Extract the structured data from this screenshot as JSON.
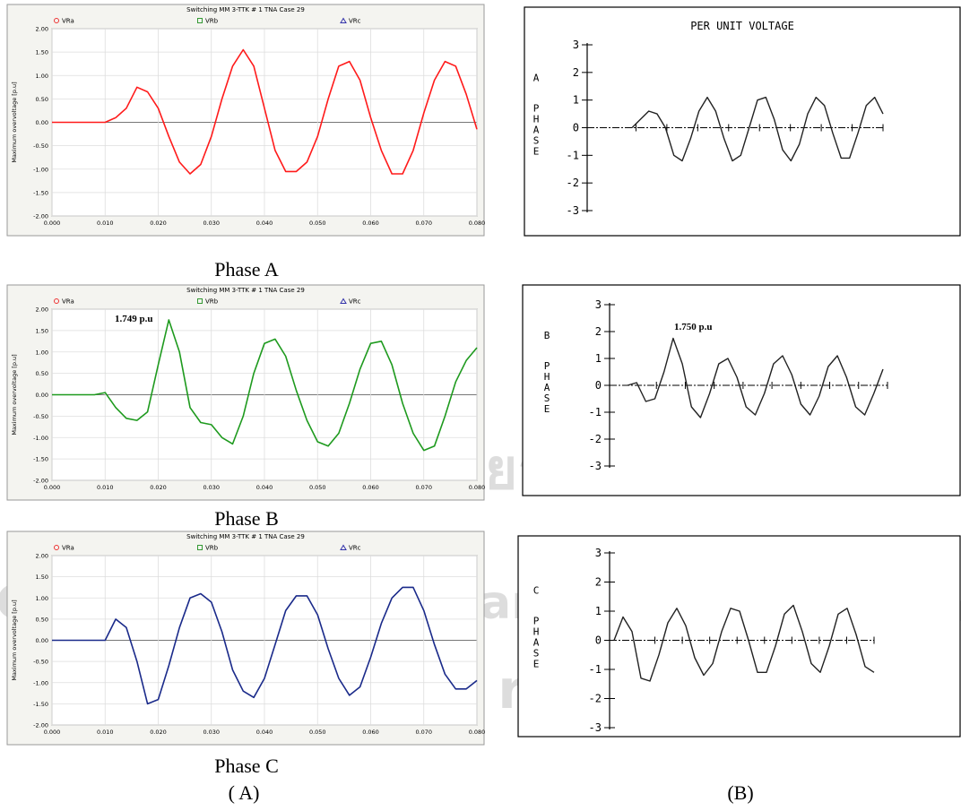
{
  "chart_data": [
    {
      "type": "line",
      "title": "Switching MM 3-TTK # 1 TNA Case 29",
      "legend": [
        "VRa",
        "VRb",
        "VRc"
      ],
      "ylabel": "Maximum overvoltage [p.u]",
      "x": [
        0,
        0.002,
        0.004,
        0.006,
        0.008,
        0.01,
        0.012,
        0.014,
        0.016,
        0.018,
        0.02,
        0.022,
        0.024,
        0.026,
        0.028,
        0.03,
        0.032,
        0.034,
        0.036,
        0.038,
        0.04,
        0.042,
        0.044,
        0.046,
        0.048,
        0.05,
        0.052,
        0.054,
        0.056,
        0.058,
        0.06,
        0.062,
        0.064,
        0.066,
        0.068,
        0.07,
        0.072,
        0.074,
        0.076,
        0.078,
        0.08
      ],
      "series": [
        {
          "color": "#ff1a1a",
          "values": [
            0,
            0,
            0,
            0,
            0,
            0,
            0.1,
            0.3,
            0.75,
            0.65,
            0.3,
            -0.3,
            -0.85,
            -1.1,
            -0.9,
            -0.3,
            0.5,
            1.2,
            1.55,
            1.2,
            0.3,
            -0.6,
            -1.05,
            -1.05,
            -0.85,
            -0.3,
            0.5,
            1.2,
            1.3,
            0.9,
            0.1,
            -0.6,
            -1.1,
            -1.1,
            -0.6,
            0.2,
            0.9,
            1.3,
            1.2,
            0.6,
            -0.15
          ]
        }
      ],
      "xlim": [
        0,
        0.08
      ],
      "ylim": [
        -2,
        2
      ],
      "xticks": [
        {
          "value": 0,
          "label": "0.000"
        },
        {
          "value": 0.01,
          "label": "0.010"
        },
        {
          "value": 0.02,
          "label": "0.020"
        },
        {
          "value": 0.03,
          "label": "0.030"
        },
        {
          "value": 0.04,
          "label": "0.040"
        },
        {
          "value": 0.05,
          "label": "0.050"
        },
        {
          "value": 0.06,
          "label": "0.060"
        },
        {
          "value": 0.07,
          "label": "0.070"
        },
        {
          "value": 0.08,
          "label": "0.080"
        }
      ],
      "yticks": [
        {
          "value": 2,
          "label": "2.00"
        },
        {
          "value": 1.5,
          "label": "1.50"
        },
        {
          "value": 1,
          "label": "1.00"
        },
        {
          "value": 0.5,
          "label": "0.50"
        },
        {
          "value": 0,
          "label": "0.00"
        },
        {
          "value": -0.5,
          "label": "-0.50"
        },
        {
          "value": -1,
          "label": "-1.00"
        },
        {
          "value": -1.5,
          "label": "-1.50"
        },
        {
          "value": -2,
          "label": "-2.00"
        }
      ],
      "grid": true
    },
    {
      "type": "line",
      "title": "Switching MM 3-TTK # 1 TNA Case 29",
      "legend": [
        "VRa",
        "VRb",
        "VRc"
      ],
      "ylabel": "Maximum overvoltage [p.u]",
      "annotation": "1.749 p.u",
      "x": [
        0,
        0.002,
        0.004,
        0.006,
        0.008,
        0.01,
        0.012,
        0.014,
        0.016,
        0.018,
        0.02,
        0.022,
        0.024,
        0.026,
        0.028,
        0.03,
        0.032,
        0.034,
        0.036,
        0.038,
        0.04,
        0.042,
        0.044,
        0.046,
        0.048,
        0.05,
        0.052,
        0.054,
        0.056,
        0.058,
        0.06,
        0.062,
        0.064,
        0.066,
        0.068,
        0.07,
        0.072,
        0.074,
        0.076,
        0.078,
        0.08
      ],
      "series": [
        {
          "color": "#1e9a1e",
          "values": [
            0,
            0,
            0,
            0,
            0,
            0.05,
            -0.3,
            -0.55,
            -0.6,
            -0.4,
            0.7,
            1.749,
            1.0,
            -0.3,
            -0.65,
            -0.7,
            -1.0,
            -1.15,
            -0.5,
            0.5,
            1.2,
            1.3,
            0.9,
            0.1,
            -0.6,
            -1.1,
            -1.2,
            -0.9,
            -0.2,
            0.6,
            1.2,
            1.25,
            0.7,
            -0.2,
            -0.9,
            -1.3,
            -1.2,
            -0.5,
            0.3,
            0.8,
            1.1
          ]
        }
      ],
      "xlim": [
        0,
        0.08
      ],
      "ylim": [
        -2,
        2
      ],
      "xticks": [
        {
          "value": 0,
          "label": "0.000"
        },
        {
          "value": 0.01,
          "label": "0.010"
        },
        {
          "value": 0.02,
          "label": "0.020"
        },
        {
          "value": 0.03,
          "label": "0.030"
        },
        {
          "value": 0.04,
          "label": "0.040"
        },
        {
          "value": 0.05,
          "label": "0.050"
        },
        {
          "value": 0.06,
          "label": "0.060"
        },
        {
          "value": 0.07,
          "label": "0.070"
        },
        {
          "value": 0.08,
          "label": "0.080"
        }
      ],
      "yticks": [
        {
          "value": 2,
          "label": "2.00"
        },
        {
          "value": 1.5,
          "label": "1.50"
        },
        {
          "value": 1,
          "label": "1.00"
        },
        {
          "value": 0.5,
          "label": "0.50"
        },
        {
          "value": 0,
          "label": "0.00"
        },
        {
          "value": -0.5,
          "label": "-0.50"
        },
        {
          "value": -1,
          "label": "-1.00"
        },
        {
          "value": -1.5,
          "label": "-1.50"
        },
        {
          "value": -2,
          "label": "-2.00"
        }
      ],
      "grid": true
    },
    {
      "type": "line",
      "title": "Switching MM 3-TTK # 1 TNA Case 29",
      "legend": [
        "VRa",
        "VRb",
        "VRc"
      ],
      "ylabel": "Maximum overvoltage [p.u]",
      "x": [
        0,
        0.002,
        0.004,
        0.006,
        0.008,
        0.01,
        0.012,
        0.014,
        0.016,
        0.018,
        0.02,
        0.022,
        0.024,
        0.026,
        0.028,
        0.03,
        0.032,
        0.034,
        0.036,
        0.038,
        0.04,
        0.042,
        0.044,
        0.046,
        0.048,
        0.05,
        0.052,
        0.054,
        0.056,
        0.058,
        0.06,
        0.062,
        0.064,
        0.066,
        0.068,
        0.07,
        0.072,
        0.074,
        0.076,
        0.078,
        0.08
      ],
      "series": [
        {
          "color": "#1a2a8a",
          "values": [
            0,
            0,
            0,
            0,
            0,
            0,
            0.5,
            0.3,
            -0.5,
            -1.5,
            -1.4,
            -0.6,
            0.3,
            1.0,
            1.1,
            0.9,
            0.2,
            -0.7,
            -1.2,
            -1.35,
            -0.9,
            -0.1,
            0.7,
            1.05,
            1.05,
            0.6,
            -0.2,
            -0.9,
            -1.3,
            -1.1,
            -0.4,
            0.4,
            1.0,
            1.25,
            1.25,
            0.7,
            -0.1,
            -0.8,
            -1.15,
            -1.15,
            -0.95
          ]
        }
      ],
      "xlim": [
        0,
        0.08
      ],
      "ylim": [
        -2,
        2
      ],
      "xticks": [
        {
          "value": 0,
          "label": "0.000"
        },
        {
          "value": 0.01,
          "label": "0.010"
        },
        {
          "value": 0.02,
          "label": "0.020"
        },
        {
          "value": 0.03,
          "label": "0.030"
        },
        {
          "value": 0.04,
          "label": "0.040"
        },
        {
          "value": 0.05,
          "label": "0.050"
        },
        {
          "value": 0.06,
          "label": "0.060"
        },
        {
          "value": 0.07,
          "label": "0.070"
        },
        {
          "value": 0.08,
          "label": "0.080"
        }
      ],
      "yticks": [
        {
          "value": 2,
          "label": "2.00"
        },
        {
          "value": 1.5,
          "label": "1.50"
        },
        {
          "value": 1,
          "label": "1.00"
        },
        {
          "value": 0.5,
          "label": "0.50"
        },
        {
          "value": 0,
          "label": "0.00"
        },
        {
          "value": -0.5,
          "label": "-0.50"
        },
        {
          "value": -1,
          "label": "-1.00"
        },
        {
          "value": -1.5,
          "label": "-1.50"
        },
        {
          "value": -2,
          "label": "-2.00"
        }
      ],
      "grid": true
    },
    {
      "type": "line",
      "title": "PER UNIT VOLTAGE",
      "phase": "A",
      "ylabel": "PHASE",
      "color": "#222222",
      "values": [
        0,
        0.3,
        0.6,
        0.5,
        0,
        -1.0,
        -1.2,
        -0.4,
        0.6,
        1.1,
        0.6,
        -0.4,
        -1.2,
        -1.0,
        0,
        1.0,
        1.1,
        0.3,
        -0.8,
        -1.2,
        -0.6,
        0.5,
        1.1,
        0.8,
        -0.2,
        -1.1,
        -1.1,
        -0.2,
        0.8,
        1.1,
        0.5
      ],
      "ylim": [
        -3,
        3
      ],
      "yticks": [
        3,
        2,
        1,
        0,
        -1,
        -2,
        -3
      ]
    },
    {
      "type": "line",
      "phase": "B",
      "ylabel": "PHASE",
      "annotation": "1.750 p.u",
      "color": "#222222",
      "values": [
        0,
        0.1,
        -0.6,
        -0.5,
        0.5,
        1.75,
        0.8,
        -0.8,
        -1.2,
        -0.3,
        0.8,
        1.0,
        0.3,
        -0.8,
        -1.1,
        -0.3,
        0.8,
        1.1,
        0.4,
        -0.7,
        -1.1,
        -0.4,
        0.7,
        1.1,
        0.3,
        -0.8,
        -1.1,
        -0.3,
        0.6
      ],
      "ylim": [
        -3,
        3
      ],
      "yticks": [
        3,
        2,
        1,
        0,
        -1,
        -2,
        -3
      ]
    },
    {
      "type": "line",
      "phase": "C",
      "ylabel": "PHASE",
      "color": "#222222",
      "values": [
        0,
        0.8,
        0.3,
        -1.3,
        -1.4,
        -0.5,
        0.6,
        1.1,
        0.5,
        -0.6,
        -1.2,
        -0.8,
        0.3,
        1.1,
        1.0,
        0,
        -1.1,
        -1.1,
        -0.2,
        0.9,
        1.2,
        0.3,
        -0.8,
        -1.1,
        -0.2,
        0.9,
        1.1,
        0.2,
        -0.9,
        -1.1
      ],
      "ylim": [
        -3,
        3
      ],
      "yticks": [
        3,
        2,
        1,
        0,
        -1,
        -2,
        -3
      ]
    }
  ],
  "captions": [
    "Phase A",
    "Phase B",
    "Phase C",
    "( A)",
    "(B)"
  ],
  "watermark": [
    "ลิขสิทธิ์มหาวิทยาลัยเชียงใหม่",
    "Copyright© by Chiang Mai University",
    "All rights reserved"
  ]
}
